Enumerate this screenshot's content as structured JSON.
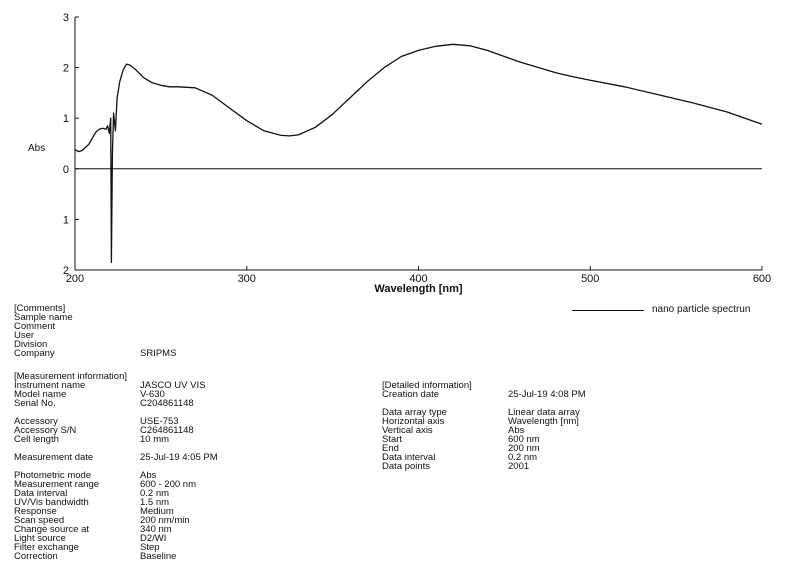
{
  "chart_data": {
    "type": "line",
    "xlabel": "Wavelength [nm]",
    "ylabel": "Abs",
    "xlim": [
      200,
      600
    ],
    "ylim": [
      -2,
      3
    ],
    "x_ticks": [
      "200",
      "300",
      "400",
      "500",
      "600"
    ],
    "y_ticks": [
      {
        "value": 3,
        "label": "3"
      },
      {
        "value": 2,
        "label": "2"
      },
      {
        "value": 1,
        "label": "1"
      },
      {
        "value": 0,
        "label": "0"
      },
      {
        "value": -1,
        "label": "1"
      },
      {
        "value": -2,
        "label": "2"
      }
    ],
    "series": [
      {
        "name": "nano particle spectrum",
        "color": "#111111",
        "points": [
          [
            200,
            0.38
          ],
          [
            202,
            0.34
          ],
          [
            204,
            0.36
          ],
          [
            206,
            0.42
          ],
          [
            208,
            0.48
          ],
          [
            210,
            0.6
          ],
          [
            212,
            0.72
          ],
          [
            214,
            0.78
          ],
          [
            216,
            0.8
          ],
          [
            218,
            0.78
          ],
          [
            219,
            0.85
          ],
          [
            220,
            0.7
          ],
          [
            220.8,
            1.0
          ],
          [
            221.2,
            -1.85
          ],
          [
            221.8,
            0.3
          ],
          [
            222.5,
            1.1
          ],
          [
            223.5,
            0.75
          ],
          [
            224.5,
            1.4
          ],
          [
            226,
            1.72
          ],
          [
            228,
            1.95
          ],
          [
            230,
            2.07
          ],
          [
            232,
            2.05
          ],
          [
            235,
            1.97
          ],
          [
            240,
            1.8
          ],
          [
            245,
            1.7
          ],
          [
            250,
            1.65
          ],
          [
            255,
            1.62
          ],
          [
            260,
            1.62
          ],
          [
            265,
            1.61
          ],
          [
            270,
            1.6
          ],
          [
            280,
            1.45
          ],
          [
            290,
            1.2
          ],
          [
            300,
            0.95
          ],
          [
            310,
            0.75
          ],
          [
            320,
            0.66
          ],
          [
            325,
            0.65
          ],
          [
            330,
            0.67
          ],
          [
            340,
            0.82
          ],
          [
            350,
            1.08
          ],
          [
            360,
            1.4
          ],
          [
            370,
            1.72
          ],
          [
            380,
            2.0
          ],
          [
            390,
            2.22
          ],
          [
            400,
            2.34
          ],
          [
            410,
            2.42
          ],
          [
            420,
            2.46
          ],
          [
            430,
            2.43
          ],
          [
            440,
            2.34
          ],
          [
            450,
            2.22
          ],
          [
            460,
            2.1
          ],
          [
            470,
            2.0
          ],
          [
            480,
            1.9
          ],
          [
            490,
            1.82
          ],
          [
            500,
            1.75
          ],
          [
            520,
            1.62
          ],
          [
            540,
            1.46
          ],
          [
            560,
            1.3
          ],
          [
            580,
            1.12
          ],
          [
            600,
            0.88
          ]
        ]
      }
    ]
  },
  "legend": {
    "label": "nano particle spectrun"
  },
  "comments": {
    "header": "[Comments]",
    "rows": [
      {
        "key": "Sample name",
        "value": ""
      },
      {
        "key": "Comment",
        "value": ""
      },
      {
        "key": "User",
        "value": ""
      },
      {
        "key": "Division",
        "value": ""
      },
      {
        "key": "Company",
        "value": "SRIPMS"
      }
    ]
  },
  "measurement": {
    "header": "[Measurement information]",
    "groups": [
      [
        {
          "key": "Instrument name",
          "value": "JASCO UV VIS"
        },
        {
          "key": "Model name",
          "value": "V-630"
        },
        {
          "key": "Serial No.",
          "value": "C204861148"
        }
      ],
      [
        {
          "key": "Accessory",
          "value": "USE-753"
        },
        {
          "key": "Accessory S/N",
          "value": "C264861148"
        },
        {
          "key": "Cell length",
          "value": "10 mm"
        }
      ],
      [
        {
          "key": "Measurement date",
          "value": "25-Jul-19 4:05 PM"
        }
      ],
      [
        {
          "key": "Photometric mode",
          "value": "Abs"
        },
        {
          "key": "Measurement range",
          "value": "600 - 200 nm"
        },
        {
          "key": "Data interval",
          "value": "0.2 nm"
        },
        {
          "key": "UV/Vis bandwidth",
          "value": "1.5 nm"
        },
        {
          "key": "Response",
          "value": "Medium"
        },
        {
          "key": "Scan speed",
          "value": "200 nm/min"
        },
        {
          "key": "Change source at",
          "value": "340 nm"
        },
        {
          "key": "Light source",
          "value": "D2/WI"
        },
        {
          "key": "Filter exchange",
          "value": "Step"
        },
        {
          "key": "Correction",
          "value": "Baseline"
        }
      ]
    ]
  },
  "detailed": {
    "header": "[Detailed information]",
    "groups": [
      [
        {
          "key": "Creation date",
          "value": "25-Jul-19 4:08 PM"
        }
      ],
      [
        {
          "key": "Data array type",
          "value": "Linear data array"
        },
        {
          "key": "Horizontal axis",
          "value": "Wavelength [nm]"
        },
        {
          "key": "Vertical axis",
          "value": "Abs"
        },
        {
          "key": "Start",
          "value": "600 nm"
        },
        {
          "key": "End",
          "value": "200 nm"
        },
        {
          "key": "Data interval",
          "value": "0.2 nm"
        },
        {
          "key": "Data points",
          "value": "2001"
        }
      ]
    ]
  }
}
